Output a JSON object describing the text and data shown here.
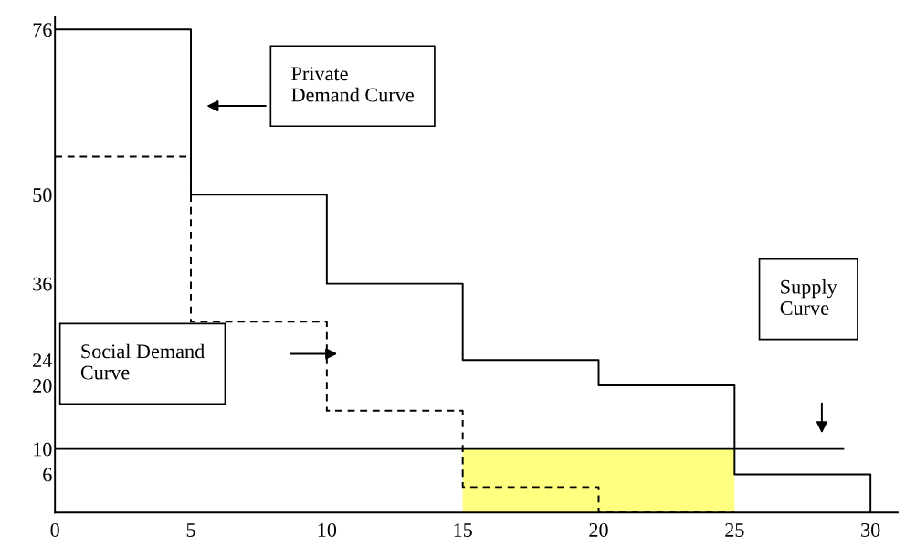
{
  "chart_data": {
    "type": "step",
    "series": [
      {
        "color": "#000000",
        "line_style": "solid",
        "x": [
          0,
          5,
          10,
          15,
          20,
          25,
          30
        ],
        "values": [
          76,
          50,
          36,
          24,
          20,
          6,
          0
        ]
      },
      {
        "color": "#000000",
        "line_style": "dashed",
        "x": [
          0,
          5,
          10,
          15,
          20,
          25
        ],
        "values": [
          56,
          30,
          16,
          4,
          0,
          0
        ]
      },
      {
        "type": "line",
        "color": "#000000",
        "line_style": "solid",
        "x": [
          0,
          29
        ],
        "values": [
          10,
          10
        ]
      },
      {
        "type": "area",
        "color": "#ffff80",
        "x": [
          15,
          25
        ],
        "values": [
          10,
          10
        ]
      }
    ],
    "xlim": [
      0,
      31
    ],
    "xticks": [
      0,
      5,
      10,
      15,
      20,
      25,
      30
    ],
    "ylim": [
      0,
      78
    ],
    "yticks": [
      6,
      10,
      20,
      24,
      36,
      50,
      76
    ],
    "grid": false,
    "legend": false,
    "annotations": [
      "Private\nDemand Curve",
      "Social Demand\nCurve",
      "Supply\nCurve"
    ]
  }
}
